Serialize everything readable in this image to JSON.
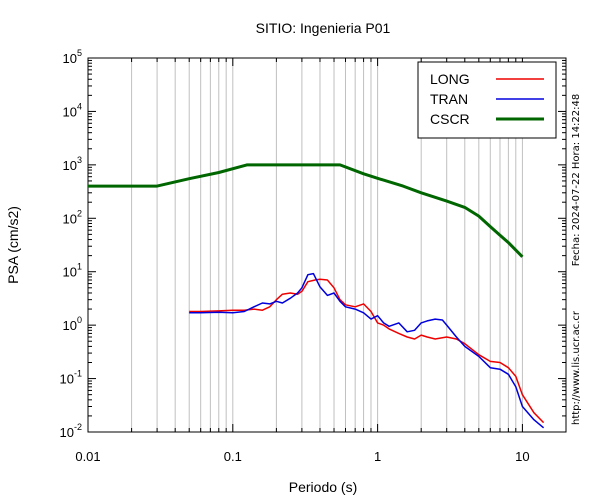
{
  "chart_data": {
    "type": "line",
    "title": "SITIO: Ingenieria P01",
    "xlabel": "Periodo (s)",
    "ylabel": "PSA (cm/s2)",
    "xscale": "log",
    "yscale": "log",
    "xlim": [
      0.01,
      20
    ],
    "ylim": [
      0.01,
      100000
    ],
    "grid": "x-minor",
    "legend_position": "top-right",
    "x_tick_labels": [
      "0.01",
      "0.1",
      "1",
      "10"
    ],
    "y_tick_labels": [
      {
        "base": "10",
        "exp": "-2"
      },
      {
        "base": "10",
        "exp": "-1"
      },
      {
        "base": "10",
        "exp": "0"
      },
      {
        "base": "10",
        "exp": "1"
      },
      {
        "base": "10",
        "exp": "2"
      },
      {
        "base": "10",
        "exp": "3"
      },
      {
        "base": "10",
        "exp": "4"
      },
      {
        "base": "10",
        "exp": "5"
      }
    ],
    "side_notes": {
      "date": "Fecha: 2024-07-22 Hora: 14:22:48",
      "url": "http://www.lis.ucr.ac.cr"
    },
    "series": [
      {
        "name": "LONG",
        "color": "#ee0000",
        "width": 1.5,
        "x": [
          0.05,
          0.06,
          0.08,
          0.1,
          0.12,
          0.14,
          0.16,
          0.18,
          0.2,
          0.22,
          0.25,
          0.28,
          0.3,
          0.33,
          0.37,
          0.4,
          0.45,
          0.5,
          0.55,
          0.6,
          0.7,
          0.8,
          0.9,
          1.0,
          1.1,
          1.2,
          1.4,
          1.6,
          1.8,
          2.0,
          2.2,
          2.5,
          3.0,
          3.5,
          4.0,
          5.0,
          6.0,
          7.0,
          8.0,
          9.0,
          10.0,
          12.0,
          14.0
        ],
        "y": [
          1.8,
          1.8,
          1.85,
          1.9,
          1.9,
          2.0,
          1.9,
          2.2,
          3.0,
          3.8,
          4.0,
          3.8,
          4.3,
          6.5,
          7.0,
          7.2,
          7.0,
          5.0,
          3.0,
          2.4,
          2.2,
          2.5,
          1.8,
          1.1,
          1.0,
          0.85,
          0.7,
          0.6,
          0.55,
          0.65,
          0.6,
          0.55,
          0.6,
          0.55,
          0.45,
          0.28,
          0.21,
          0.2,
          0.16,
          0.11,
          0.05,
          0.023,
          0.015
        ]
      },
      {
        "name": "TRAN",
        "color": "#0000dd",
        "width": 1.5,
        "x": [
          0.05,
          0.06,
          0.08,
          0.1,
          0.12,
          0.14,
          0.16,
          0.18,
          0.2,
          0.22,
          0.25,
          0.28,
          0.3,
          0.33,
          0.36,
          0.4,
          0.45,
          0.5,
          0.55,
          0.6,
          0.7,
          0.8,
          0.9,
          1.0,
          1.1,
          1.2,
          1.4,
          1.6,
          1.8,
          2.0,
          2.2,
          2.5,
          2.8,
          3.0,
          3.5,
          4.0,
          5.0,
          6.0,
          7.0,
          8.0,
          9.0,
          10.0,
          12.0,
          14.0
        ],
        "y": [
          1.7,
          1.7,
          1.75,
          1.7,
          1.8,
          2.2,
          2.6,
          2.5,
          2.8,
          2.6,
          3.2,
          4.0,
          5.0,
          8.8,
          9.2,
          5.2,
          3.6,
          4.0,
          2.8,
          2.2,
          2.0,
          1.7,
          1.3,
          1.5,
          1.1,
          0.95,
          1.1,
          0.75,
          0.8,
          1.1,
          1.2,
          1.3,
          1.25,
          1.0,
          0.6,
          0.4,
          0.26,
          0.16,
          0.15,
          0.12,
          0.07,
          0.03,
          0.017,
          0.012
        ]
      },
      {
        "name": "CSCR",
        "color": "#006600",
        "width": 3,
        "x": [
          0.01,
          0.03,
          0.05,
          0.08,
          0.125,
          0.2,
          0.3,
          0.55,
          0.8,
          1.0,
          1.5,
          2.0,
          3.0,
          4.0,
          5.0,
          6.0,
          7.0,
          8.0,
          10.0
        ],
        "y": [
          400,
          400,
          550,
          720,
          1000,
          1000,
          1000,
          1000,
          680,
          560,
          400,
          300,
          210,
          160,
          110,
          70,
          48,
          35,
          19
        ]
      }
    ]
  }
}
